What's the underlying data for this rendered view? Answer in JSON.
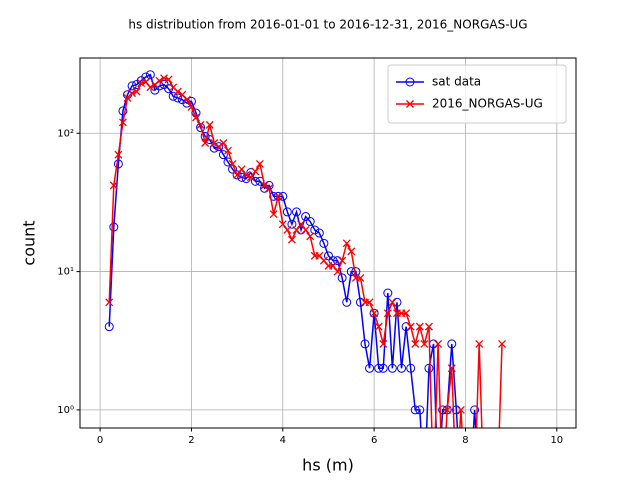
{
  "chart_data": {
    "type": "line",
    "title": "hs distribution from 2016-01-01 to 2016-12-31, 2016_NORGAS-UG",
    "xlabel": "hs (m)",
    "ylabel": "count",
    "x": [
      0.2,
      0.3,
      0.4,
      0.5,
      0.6,
      0.7,
      0.8,
      0.9,
      1.0,
      1.1,
      1.2,
      1.3,
      1.4,
      1.5,
      1.6,
      1.7,
      1.8,
      1.9,
      2.0,
      2.1,
      2.2,
      2.3,
      2.4,
      2.5,
      2.6,
      2.7,
      2.8,
      2.9,
      3.0,
      3.1,
      3.2,
      3.3,
      3.4,
      3.5,
      3.6,
      3.7,
      3.8,
      3.9,
      4.0,
      4.1,
      4.2,
      4.3,
      4.4,
      4.5,
      4.6,
      4.7,
      4.8,
      4.9,
      5.0,
      5.1,
      5.2,
      5.3,
      5.4,
      5.5,
      5.6,
      5.7,
      5.8,
      5.9,
      6.0,
      6.1,
      6.2,
      6.3,
      6.4,
      6.5,
      6.6,
      6.7,
      6.8,
      6.9,
      7.0,
      7.1,
      7.2,
      7.3,
      7.4,
      7.5,
      7.6,
      7.7,
      7.8,
      7.9,
      8.0,
      8.1,
      8.2,
      8.3,
      8.4,
      8.5,
      8.6,
      8.7,
      8.8
    ],
    "series": [
      {
        "name": "sat data",
        "color": "#0000ff",
        "marker": "circle",
        "values": [
          4,
          21,
          60,
          145,
          190,
          220,
          225,
          240,
          255,
          265,
          205,
          220,
          225,
          210,
          185,
          180,
          175,
          165,
          170,
          140,
          110,
          95,
          90,
          78,
          80,
          70,
          62,
          55,
          50,
          48,
          47,
          52,
          45,
          45,
          40,
          42,
          35,
          35,
          35,
          27,
          22,
          27,
          20,
          25,
          23,
          20,
          19,
          16,
          13,
          12,
          12,
          9,
          6,
          10,
          10,
          6,
          3,
          2,
          5,
          2,
          2,
          7,
          2,
          6,
          2,
          4,
          2,
          1,
          1,
          0,
          2,
          3,
          0,
          1,
          1,
          3,
          1,
          0,
          0,
          0,
          1,
          0,
          0,
          0,
          0,
          0,
          0
        ]
      },
      {
        "name": "2016_NORGAS-UG",
        "color": "#ff0000",
        "marker": "x",
        "values": [
          6,
          42,
          70,
          120,
          180,
          195,
          200,
          230,
          235,
          215,
          225,
          240,
          250,
          245,
          215,
          200,
          190,
          175,
          155,
          130,
          115,
          85,
          115,
          85,
          80,
          85,
          75,
          60,
          50,
          55,
          50,
          48,
          53,
          60,
          42,
          40,
          26,
          35,
          22,
          20,
          17,
          20,
          22,
          20,
          18,
          13,
          13,
          12,
          11,
          11,
          10,
          12,
          16,
          14,
          9,
          9,
          6,
          6,
          5,
          4,
          3,
          5,
          6,
          5,
          5,
          5,
          4,
          3,
          4,
          3,
          4,
          0,
          3,
          0,
          1,
          2,
          0,
          1,
          0,
          0,
          0,
          3,
          0,
          0,
          0,
          0,
          3
        ]
      }
    ],
    "xlim": [
      -0.44,
      10.42
    ],
    "xticks": [
      0,
      2,
      4,
      6,
      8,
      10
    ],
    "ylim": [
      0.74,
      350
    ],
    "yscale": "log",
    "yticks": [
      {
        "value": 1,
        "label": "10⁰"
      },
      {
        "value": 10,
        "label": "10¹"
      },
      {
        "value": 100,
        "label": "10²"
      }
    ],
    "grid": true,
    "legend": "upper right"
  }
}
